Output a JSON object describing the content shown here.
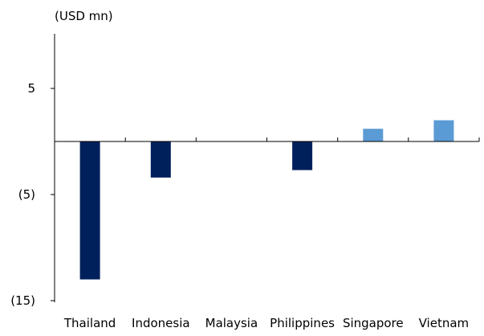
{
  "chart_data": {
    "type": "bar",
    "unit_label": "(USD mn)",
    "categories": [
      "Thailand",
      "Indonesia",
      "Malaysia",
      "Philippines",
      "Singapore",
      "Vietnam"
    ],
    "values": [
      -13.0,
      -3.4,
      0.0,
      -2.7,
      1.2,
      2.0
    ],
    "ylim": [
      -15,
      10
    ],
    "yticks": [
      5,
      -5,
      -15
    ],
    "ytick_labels": [
      "5",
      "(5)",
      "(15)"
    ],
    "grid": false,
    "legend": "none",
    "colors": {
      "negative": "#00205B",
      "positive": "#5B9BD5",
      "axis": "#000000"
    }
  }
}
